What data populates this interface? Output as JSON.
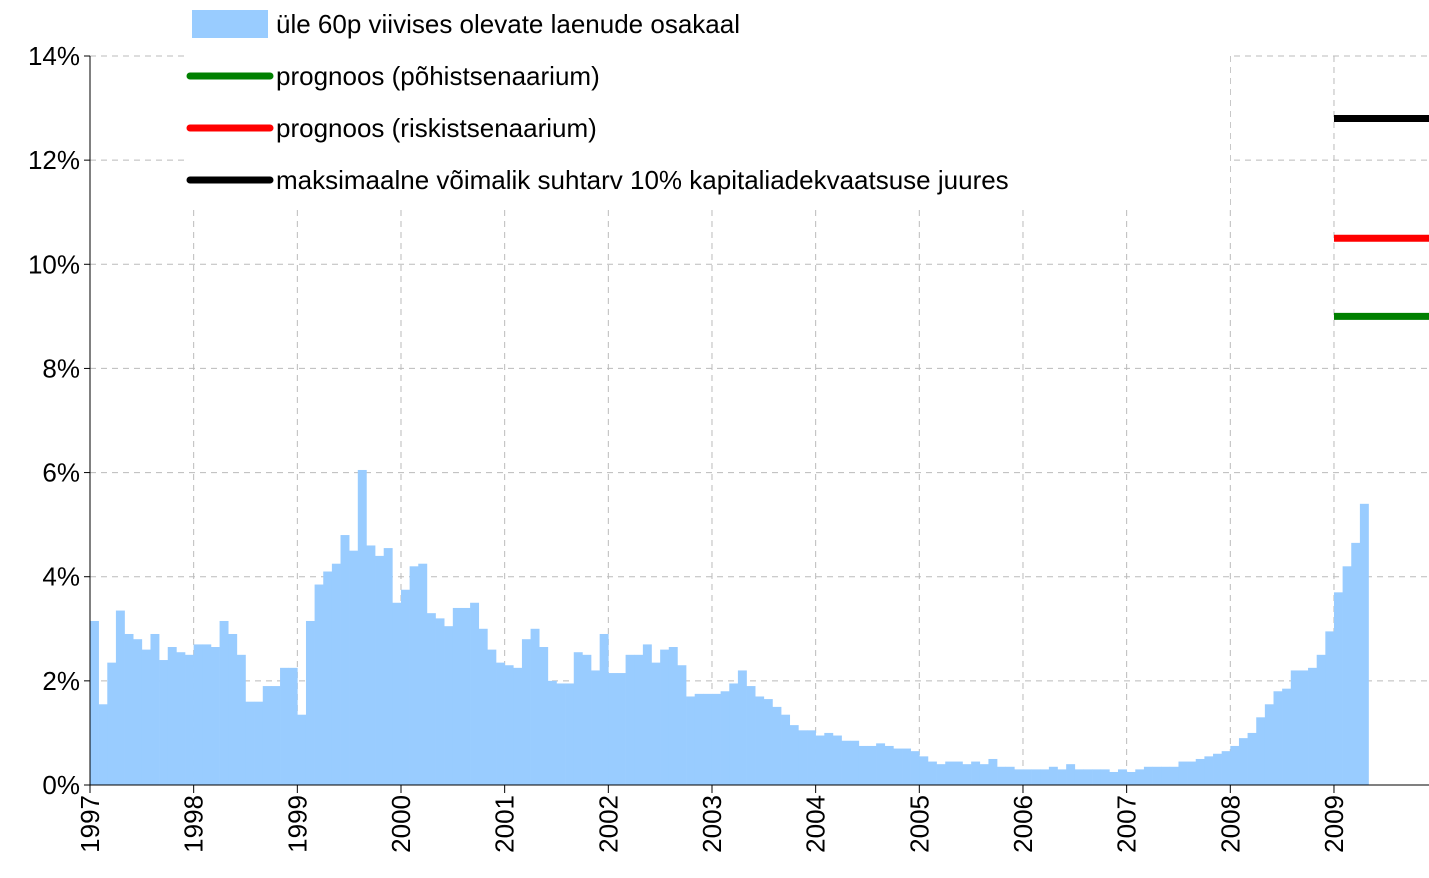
{
  "chart_data": {
    "type": "bar",
    "series": [
      {
        "name": "üle 60p viivises olevate laenude osakaal",
        "color": "#99ccff",
        "values": [
          3.15,
          1.55,
          2.35,
          3.35,
          2.9,
          2.8,
          2.6,
          2.9,
          2.4,
          2.65,
          2.55,
          2.5,
          2.7,
          2.7,
          2.65,
          3.15,
          2.9,
          2.5,
          1.6,
          1.6,
          1.9,
          1.9,
          2.25,
          2.25,
          1.35,
          3.15,
          3.85,
          4.1,
          4.25,
          4.8,
          4.5,
          6.05,
          4.6,
          4.4,
          4.55,
          3.5,
          3.75,
          4.2,
          4.25,
          3.3,
          3.2,
          3.05,
          3.4,
          3.4,
          3.5,
          3.0,
          2.6,
          2.35,
          2.3,
          2.25,
          2.8,
          3.0,
          2.65,
          2.0,
          1.95,
          1.95,
          2.55,
          2.5,
          2.2,
          2.9,
          2.15,
          2.15,
          2.5,
          2.5,
          2.7,
          2.35,
          2.6,
          2.65,
          2.3,
          1.7,
          1.75,
          1.75,
          1.75,
          1.8,
          1.95,
          2.2,
          1.9,
          1.7,
          1.65,
          1.5,
          1.35,
          1.15,
          1.05,
          1.05,
          0.95,
          1.0,
          0.95,
          0.85,
          0.85,
          0.75,
          0.75,
          0.8,
          0.75,
          0.7,
          0.7,
          0.65,
          0.55,
          0.45,
          0.4,
          0.45,
          0.45,
          0.4,
          0.45,
          0.4,
          0.5,
          0.35,
          0.35,
          0.3,
          0.3,
          0.3,
          0.3,
          0.35,
          0.3,
          0.4,
          0.3,
          0.3,
          0.3,
          0.3,
          0.25,
          0.3,
          0.25,
          0.3,
          0.35,
          0.35,
          0.35,
          0.35,
          0.45,
          0.45,
          0.5,
          0.55,
          0.6,
          0.65,
          0.75,
          0.9,
          1.0,
          1.3,
          1.55,
          1.8,
          1.85,
          2.2,
          2.2,
          2.25,
          2.5,
          2.95,
          3.7,
          4.2,
          4.65,
          5.4,
          null,
          null,
          null,
          null,
          null,
          null,
          null
        ]
      }
    ],
    "reference_lines": [
      {
        "name": "prognoos (põhistsenaarium)",
        "color": "#008000",
        "value": 9.0
      },
      {
        "name": "prognoos (riskistsenaarium)",
        "color": "#ff0000",
        "value": 10.5
      },
      {
        "name": "maksimaalne võimalik suhtarv 10% kapitaliadekvaatsuse juures",
        "color": "#000000",
        "value": 12.8
      }
    ],
    "categories": [
      "1997",
      null,
      null,
      null,
      null,
      null,
      null,
      null,
      null,
      null,
      null,
      null,
      "1998",
      null,
      null,
      null,
      null,
      null,
      null,
      null,
      null,
      null,
      null,
      null,
      "1999",
      null,
      null,
      null,
      null,
      null,
      null,
      null,
      null,
      null,
      null,
      null,
      "2000",
      null,
      null,
      null,
      null,
      null,
      null,
      null,
      null,
      null,
      null,
      null,
      "2001",
      null,
      null,
      null,
      null,
      null,
      null,
      null,
      null,
      null,
      null,
      null,
      "2002",
      null,
      null,
      null,
      null,
      null,
      null,
      null,
      null,
      null,
      null,
      null,
      "2003",
      null,
      null,
      null,
      null,
      null,
      null,
      null,
      null,
      null,
      null,
      null,
      "2004",
      null,
      null,
      null,
      null,
      null,
      null,
      null,
      null,
      null,
      null,
      null,
      "2005",
      null,
      null,
      null,
      null,
      null,
      null,
      null,
      null,
      null,
      null,
      null,
      "2006",
      null,
      null,
      null,
      null,
      null,
      null,
      null,
      null,
      null,
      null,
      null,
      "2007",
      null,
      null,
      null,
      null,
      null,
      null,
      null,
      null,
      null,
      null,
      null,
      "2008",
      null,
      null,
      null,
      null,
      null,
      null,
      null,
      null,
      null,
      null,
      null,
      "2009",
      null,
      null,
      null,
      null,
      null,
      null,
      null,
      null,
      null,
      null
    ],
    "ylim": [
      0,
      14
    ],
    "yticks": [
      {
        "value": 0,
        "label": "0%"
      },
      {
        "value": 2,
        "label": "2%"
      },
      {
        "value": 4,
        "label": "4%"
      },
      {
        "value": 6,
        "label": "6%"
      },
      {
        "value": 8,
        "label": "8%"
      },
      {
        "value": 10,
        "label": "10%"
      },
      {
        "value": 12,
        "label": "12%"
      },
      {
        "value": 14,
        "label": "14%"
      }
    ],
    "grid": true
  }
}
